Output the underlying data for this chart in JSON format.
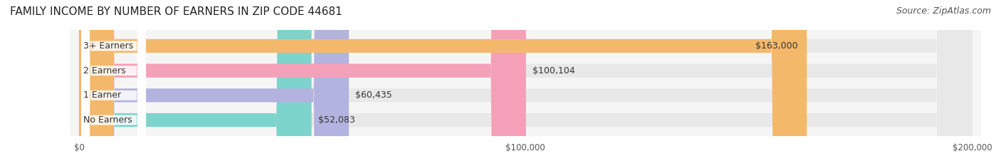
{
  "title": "FAMILY INCOME BY NUMBER OF EARNERS IN ZIP CODE 44681",
  "source": "Source: ZipAtlas.com",
  "categories": [
    "No Earners",
    "1 Earner",
    "2 Earners",
    "3+ Earners"
  ],
  "values": [
    52083,
    60435,
    100104,
    163000
  ],
  "value_labels": [
    "$52,083",
    "$60,435",
    "$100,104",
    "$163,000"
  ],
  "bar_colors": [
    "#7dd4cc",
    "#b3b3e0",
    "#f4a0b8",
    "#f4b86a"
  ],
  "bar_bg_color": "#f0f0f0",
  "label_bg_color": "#ffffff",
  "xlim": [
    0,
    200000
  ],
  "xticks": [
    0,
    100000,
    200000
  ],
  "xtick_labels": [
    "$0",
    "$100,000",
    "$200,000"
  ],
  "title_fontsize": 11,
  "source_fontsize": 9,
  "bar_label_fontsize": 9,
  "value_label_fontsize": 9,
  "figsize": [
    14.06,
    2.33
  ],
  "dpi": 100,
  "background_color": "#ffffff",
  "plot_bg_color": "#f5f5f5"
}
